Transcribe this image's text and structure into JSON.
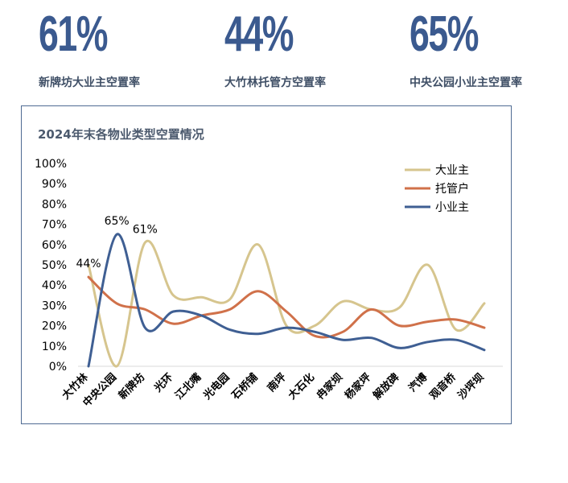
{
  "kpis": [
    {
      "value": "61%",
      "label": "新牌坊大业主空置率"
    },
    {
      "value": "44%",
      "label": "大竹林托管方空置率"
    },
    {
      "value": "65%",
      "label": "中央公园小业主空置率"
    }
  ],
  "chart_data": {
    "type": "line",
    "title": "2024年末各物业类型空置情况",
    "categories": [
      "大竹林",
      "中央公园",
      "新牌坊",
      "光环",
      "江北嘴",
      "光电园",
      "石桥铺",
      "南坪",
      "大石化",
      "冉家坝",
      "杨家坪",
      "解放碑",
      "汽博",
      "观音桥",
      "沙坪坝"
    ],
    "series": [
      {
        "name": "大业主",
        "color": "#d6c58e",
        "values": [
          50,
          0,
          61,
          35,
          34,
          33,
          60,
          20,
          20,
          32,
          28,
          29,
          50,
          18,
          31
        ]
      },
      {
        "name": "托管户",
        "color": "#d0714a",
        "values": [
          44,
          31,
          28,
          21,
          25,
          28,
          37,
          27,
          15,
          17,
          28,
          20,
          22,
          23,
          19
        ]
      },
      {
        "name": "小业主",
        "color": "#3f5f93",
        "values": [
          0,
          65,
          19,
          27,
          25,
          18,
          16,
          19,
          17,
          13,
          14,
          9,
          12,
          13,
          8
        ]
      }
    ],
    "ylim": [
      0,
      100
    ],
    "yticks": [
      "0%",
      "10%",
      "20%",
      "30%",
      "40%",
      "50%",
      "60%",
      "70%",
      "80%",
      "90%",
      "100%"
    ],
    "annotations": [
      {
        "text": "44%",
        "category": "大竹林",
        "value": 44
      },
      {
        "text": "65%",
        "category": "中央公园",
        "value": 65
      },
      {
        "text": "61%",
        "category": "新牌坊",
        "value": 61
      }
    ],
    "legend_position": "top-right"
  }
}
